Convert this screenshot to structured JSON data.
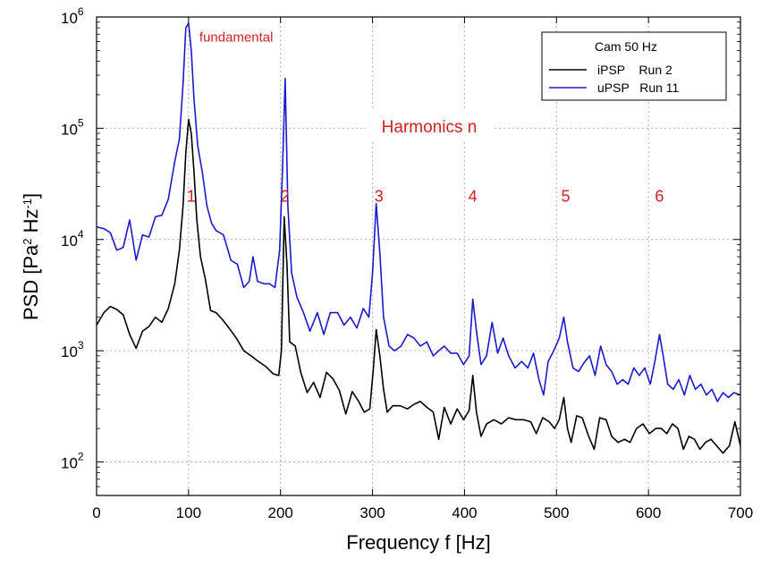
{
  "chart_data": {
    "type": "line",
    "xlabel": "Frequency  f  [Hz]",
    "ylabel_parts": {
      "base": "PSD  [Pa",
      "sup1": "2",
      "mid": " Hz",
      "sup2": "-1",
      "end": "]"
    },
    "xlim": [
      0,
      700
    ],
    "ylim": [
      50,
      1000000
    ],
    "y_scale": "log",
    "grid": true,
    "x_ticks": [
      0,
      100,
      200,
      300,
      400,
      500,
      600,
      700
    ],
    "y_ticks": [
      {
        "value": 100,
        "base": "10",
        "exp": "2"
      },
      {
        "value": 1000,
        "base": "10",
        "exp": "3"
      },
      {
        "value": 10000,
        "base": "10",
        "exp": "4"
      },
      {
        "value": 100000,
        "base": "10",
        "exp": "5"
      },
      {
        "value": 1000000,
        "base": "10",
        "exp": "6"
      }
    ],
    "legend": {
      "title": "Cam 50 Hz",
      "placement": "top-right",
      "entries": [
        {
          "label": "iPSP    Run 2",
          "color": "#000000"
        },
        {
          "label": "uPSP   Run 11",
          "color": "#1a1acc"
        }
      ]
    },
    "annotations": {
      "fundamental": {
        "text": "fundamental",
        "x": 102,
        "y": 650000
      },
      "harmonics_label": "Harmonics n",
      "harmonics": [
        {
          "n": "1",
          "x": 101
        },
        {
          "n": "2",
          "x": 203
        },
        {
          "n": "3",
          "x": 305
        },
        {
          "n": "4",
          "x": 407
        },
        {
          "n": "5",
          "x": 508
        },
        {
          "n": "6",
          "x": 610
        }
      ],
      "harmonics_y": 25000
    },
    "series": [
      {
        "name": "iPSP    Run 2",
        "color": "#000000",
        "points": [
          [
            0,
            1700
          ],
          [
            8,
            2200
          ],
          [
            15,
            2500
          ],
          [
            22,
            2350
          ],
          [
            29,
            2100
          ],
          [
            36,
            1400
          ],
          [
            43,
            1050
          ],
          [
            50,
            1500
          ],
          [
            57,
            1650
          ],
          [
            64,
            2000
          ],
          [
            71,
            1800
          ],
          [
            78,
            2400
          ],
          [
            85,
            4000
          ],
          [
            90,
            8000
          ],
          [
            94,
            20000
          ],
          [
            97,
            60000
          ],
          [
            100,
            120000
          ],
          [
            103,
            90000
          ],
          [
            106,
            40000
          ],
          [
            109,
            15000
          ],
          [
            113,
            7000
          ],
          [
            118,
            4500
          ],
          [
            124,
            2300
          ],
          [
            130,
            2200
          ],
          [
            137,
            1900
          ],
          [
            144,
            1600
          ],
          [
            152,
            1300
          ],
          [
            160,
            1000
          ],
          [
            168,
            900
          ],
          [
            176,
            800
          ],
          [
            184,
            720
          ],
          [
            192,
            620
          ],
          [
            198,
            600
          ],
          [
            201,
            1000
          ],
          [
            204,
            16000
          ],
          [
            207,
            6000
          ],
          [
            210,
            1200
          ],
          [
            216,
            1100
          ],
          [
            222,
            640
          ],
          [
            229,
            420
          ],
          [
            236,
            520
          ],
          [
            243,
            380
          ],
          [
            250,
            640
          ],
          [
            257,
            560
          ],
          [
            264,
            440
          ],
          [
            271,
            270
          ],
          [
            278,
            430
          ],
          [
            285,
            350
          ],
          [
            291,
            280
          ],
          [
            297,
            300
          ],
          [
            301,
            700
          ],
          [
            304,
            1550
          ],
          [
            308,
            900
          ],
          [
            312,
            450
          ],
          [
            316,
            280
          ],
          [
            322,
            320
          ],
          [
            330,
            320
          ],
          [
            338,
            300
          ],
          [
            345,
            330
          ],
          [
            352,
            350
          ],
          [
            359,
            310
          ],
          [
            366,
            280
          ],
          [
            372,
            160
          ],
          [
            378,
            310
          ],
          [
            385,
            220
          ],
          [
            392,
            300
          ],
          [
            399,
            240
          ],
          [
            405,
            290
          ],
          [
            409,
            600
          ],
          [
            413,
            280
          ],
          [
            418,
            170
          ],
          [
            424,
            220
          ],
          [
            432,
            240
          ],
          [
            440,
            220
          ],
          [
            448,
            250
          ],
          [
            456,
            240
          ],
          [
            464,
            240
          ],
          [
            472,
            230
          ],
          [
            478,
            180
          ],
          [
            485,
            250
          ],
          [
            492,
            230
          ],
          [
            498,
            200
          ],
          [
            503,
            240
          ],
          [
            508,
            380
          ],
          [
            512,
            200
          ],
          [
            516,
            150
          ],
          [
            522,
            260
          ],
          [
            528,
            250
          ],
          [
            535,
            170
          ],
          [
            541,
            130
          ],
          [
            547,
            250
          ],
          [
            554,
            240
          ],
          [
            560,
            170
          ],
          [
            567,
            150
          ],
          [
            574,
            160
          ],
          [
            580,
            150
          ],
          [
            587,
            200
          ],
          [
            594,
            220
          ],
          [
            601,
            180
          ],
          [
            608,
            200
          ],
          [
            614,
            200
          ],
          [
            620,
            180
          ],
          [
            626,
            220
          ],
          [
            632,
            200
          ],
          [
            638,
            130
          ],
          [
            644,
            170
          ],
          [
            650,
            160
          ],
          [
            656,
            130
          ],
          [
            662,
            150
          ],
          [
            668,
            160
          ],
          [
            674,
            140
          ],
          [
            681,
            120
          ],
          [
            688,
            140
          ],
          [
            694,
            230
          ],
          [
            700,
            140
          ]
        ]
      },
      {
        "name": "uPSP   Run 11",
        "color": "#1a1acc",
        "points": [
          [
            0,
            13000
          ],
          [
            8,
            12500
          ],
          [
            15,
            11500
          ],
          [
            22,
            8000
          ],
          [
            29,
            8500
          ],
          [
            36,
            15000
          ],
          [
            43,
            6500
          ],
          [
            50,
            11000
          ],
          [
            57,
            10500
          ],
          [
            64,
            16000
          ],
          [
            71,
            16500
          ],
          [
            78,
            23000
          ],
          [
            85,
            50000
          ],
          [
            90,
            80000
          ],
          [
            94,
            250000
          ],
          [
            97,
            800000
          ],
          [
            100,
            880000
          ],
          [
            103,
            500000
          ],
          [
            106,
            180000
          ],
          [
            110,
            70000
          ],
          [
            115,
            40000
          ],
          [
            120,
            20000
          ],
          [
            125,
            14000
          ],
          [
            130,
            12000
          ],
          [
            138,
            11000
          ],
          [
            146,
            6500
          ],
          [
            153,
            6000
          ],
          [
            160,
            3700
          ],
          [
            166,
            4200
          ],
          [
            170,
            7000
          ],
          [
            175,
            4200
          ],
          [
            182,
            4000
          ],
          [
            188,
            4000
          ],
          [
            194,
            3700
          ],
          [
            199,
            8000
          ],
          [
            202,
            40000
          ],
          [
            205,
            280000
          ],
          [
            208,
            20000
          ],
          [
            212,
            5000
          ],
          [
            218,
            3000
          ],
          [
            225,
            2200
          ],
          [
            232,
            1500
          ],
          [
            240,
            2200
          ],
          [
            247,
            1400
          ],
          [
            254,
            2200
          ],
          [
            262,
            2200
          ],
          [
            269,
            1700
          ],
          [
            276,
            2000
          ],
          [
            283,
            1600
          ],
          [
            290,
            2400
          ],
          [
            296,
            2000
          ],
          [
            300,
            5000
          ],
          [
            304,
            21000
          ],
          [
            308,
            7500
          ],
          [
            312,
            2000
          ],
          [
            318,
            1100
          ],
          [
            324,
            1000
          ],
          [
            331,
            1100
          ],
          [
            338,
            1400
          ],
          [
            345,
            1300
          ],
          [
            352,
            1100
          ],
          [
            359,
            1200
          ],
          [
            366,
            900
          ],
          [
            372,
            1000
          ],
          [
            378,
            1100
          ],
          [
            385,
            950
          ],
          [
            392,
            950
          ],
          [
            399,
            750
          ],
          [
            405,
            900
          ],
          [
            409,
            2900
          ],
          [
            413,
            1500
          ],
          [
            418,
            750
          ],
          [
            424,
            900
          ],
          [
            430,
            1800
          ],
          [
            436,
            950
          ],
          [
            442,
            1300
          ],
          [
            448,
            900
          ],
          [
            455,
            700
          ],
          [
            462,
            800
          ],
          [
            469,
            700
          ],
          [
            475,
            950
          ],
          [
            481,
            550
          ],
          [
            486,
            400
          ],
          [
            491,
            800
          ],
          [
            497,
            1000
          ],
          [
            503,
            1300
          ],
          [
            508,
            2000
          ],
          [
            512,
            1200
          ],
          [
            518,
            700
          ],
          [
            524,
            650
          ],
          [
            530,
            780
          ],
          [
            536,
            900
          ],
          [
            542,
            600
          ],
          [
            548,
            1100
          ],
          [
            554,
            750
          ],
          [
            560,
            650
          ],
          [
            566,
            500
          ],
          [
            572,
            550
          ],
          [
            578,
            500
          ],
          [
            584,
            700
          ],
          [
            590,
            600
          ],
          [
            596,
            700
          ],
          [
            602,
            500
          ],
          [
            607,
            800
          ],
          [
            612,
            1400
          ],
          [
            616,
            900
          ],
          [
            621,
            500
          ],
          [
            627,
            450
          ],
          [
            633,
            550
          ],
          [
            639,
            400
          ],
          [
            645,
            600
          ],
          [
            651,
            450
          ],
          [
            657,
            500
          ],
          [
            663,
            400
          ],
          [
            669,
            450
          ],
          [
            675,
            350
          ],
          [
            681,
            420
          ],
          [
            687,
            380
          ],
          [
            693,
            420
          ],
          [
            700,
            400
          ]
        ]
      }
    ]
  }
}
